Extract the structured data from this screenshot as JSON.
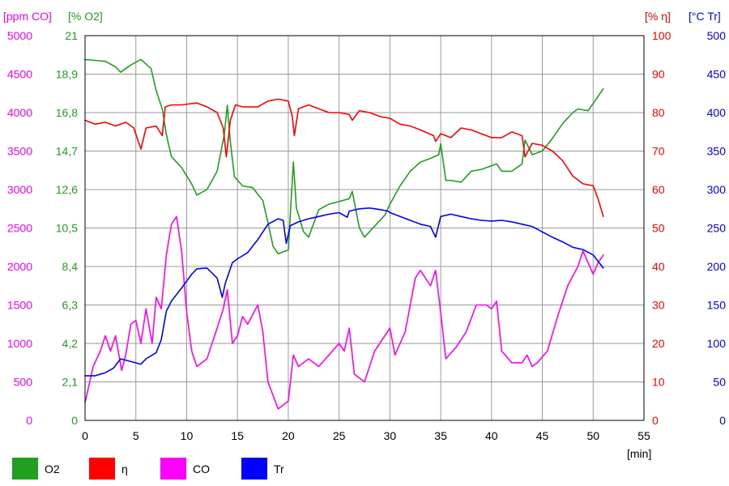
{
  "chart_data": {
    "type": "line",
    "x_unit": "[min]",
    "xlim": [
      0,
      55
    ],
    "x_ticks": [
      0,
      5,
      10,
      15,
      20,
      25,
      30,
      35,
      40,
      45,
      50,
      55
    ],
    "grid": true,
    "legend_position": "bottom-left",
    "axes": {
      "co": {
        "unit": "[ppm CO]",
        "color": "#ff00ff",
        "ticks": [
          "0",
          "500",
          "1000",
          "1500",
          "2000",
          "2500",
          "3000",
          "3500",
          "4000",
          "4500",
          "5000"
        ],
        "ylim": [
          0,
          5000
        ],
        "side": "left"
      },
      "o2": {
        "unit": "[% O2]",
        "color": "#1fa01f",
        "ticks": [
          "0",
          "2,1",
          "4,2",
          "6,3",
          "8,4",
          "10,5",
          "12,6",
          "14,7",
          "16,8",
          "18,9",
          "21"
        ],
        "ylim": [
          0,
          21
        ],
        "side": "left"
      },
      "eta": {
        "unit": "[% η]",
        "color": "#ff0000",
        "ticks": [
          "0",
          "10",
          "20",
          "30",
          "40",
          "50",
          "60",
          "70",
          "80",
          "90",
          "100"
        ],
        "ylim": [
          0,
          100
        ],
        "side": "right"
      },
      "tr": {
        "unit": "[°C Tr]",
        "color": "#0000ff",
        "ticks": [
          "0",
          "50",
          "100",
          "150",
          "200",
          "250",
          "300",
          "350",
          "400",
          "450",
          "500"
        ],
        "ylim": [
          0,
          500
        ],
        "side": "right"
      }
    },
    "legend": [
      {
        "label": "O2",
        "color": "#1fa01f"
      },
      {
        "label": "η",
        "color": "#ff0000"
      },
      {
        "label": "CO",
        "color": "#ff00ff"
      },
      {
        "label": "Tr",
        "color": "#0000ff"
      }
    ],
    "series": [
      {
        "name": "O2",
        "axis": "o2",
        "color": "#1fa01f",
        "points": [
          [
            0,
            19.7
          ],
          [
            2,
            19.6
          ],
          [
            3,
            19.3
          ],
          [
            3.5,
            19.0
          ],
          [
            4.5,
            19.4
          ],
          [
            5.5,
            19.7
          ],
          [
            6.5,
            19.2
          ],
          [
            7,
            18.0
          ],
          [
            7.6,
            17.0
          ],
          [
            8,
            15.6
          ],
          [
            8.5,
            14.4
          ],
          [
            9.5,
            13.8
          ],
          [
            10.5,
            12.9
          ],
          [
            11,
            12.3
          ],
          [
            12,
            12.6
          ],
          [
            13,
            13.6
          ],
          [
            13.7,
            15.6
          ],
          [
            14,
            17.2
          ],
          [
            14.3,
            15.2
          ],
          [
            14.7,
            13.3
          ],
          [
            15.5,
            12.8
          ],
          [
            16.5,
            12.7
          ],
          [
            17.5,
            12.0
          ],
          [
            18,
            10.8
          ],
          [
            18.5,
            9.5
          ],
          [
            19,
            9.1
          ],
          [
            20,
            9.3
          ],
          [
            20.5,
            14.1
          ],
          [
            20.8,
            11.6
          ],
          [
            21.5,
            10.3
          ],
          [
            22,
            10.0
          ],
          [
            23,
            11.5
          ],
          [
            24,
            11.8
          ],
          [
            26,
            12.1
          ],
          [
            26.3,
            12.5
          ],
          [
            27,
            10.5
          ],
          [
            27.5,
            10.0
          ],
          [
            28.5,
            10.6
          ],
          [
            29.5,
            11.2
          ],
          [
            30,
            11.8
          ],
          [
            31,
            12.8
          ],
          [
            32,
            13.6
          ],
          [
            33,
            14.1
          ],
          [
            34,
            14.3
          ],
          [
            34.8,
            14.5
          ],
          [
            35,
            15.1
          ],
          [
            35.5,
            13.1
          ],
          [
            36,
            13.1
          ],
          [
            37,
            13.0
          ],
          [
            37.5,
            13.3
          ],
          [
            38,
            13.6
          ],
          [
            39,
            13.7
          ],
          [
            40,
            13.9
          ],
          [
            40.5,
            14.0
          ],
          [
            41,
            13.6
          ],
          [
            42,
            13.6
          ],
          [
            43,
            14.0
          ],
          [
            43.3,
            15.3
          ],
          [
            44,
            14.5
          ],
          [
            45,
            14.7
          ],
          [
            46,
            15.4
          ],
          [
            47,
            16.2
          ],
          [
            48,
            16.8
          ],
          [
            48.5,
            17.0
          ],
          [
            49.5,
            16.9
          ],
          [
            50,
            17.3
          ],
          [
            51,
            18.1
          ]
        ]
      },
      {
        "name": "η",
        "axis": "eta",
        "color": "#ff0000",
        "points": [
          [
            0,
            78
          ],
          [
            1,
            77
          ],
          [
            2,
            77.5
          ],
          [
            3,
            76.5
          ],
          [
            4,
            77.5
          ],
          [
            4.8,
            76
          ],
          [
            5.5,
            70.5
          ],
          [
            6,
            76
          ],
          [
            7,
            76.5
          ],
          [
            7.6,
            74
          ],
          [
            7.9,
            81.5
          ],
          [
            8.5,
            82
          ],
          [
            9.5,
            82
          ],
          [
            11,
            82.5
          ],
          [
            12,
            81.5
          ],
          [
            13,
            80
          ],
          [
            13.6,
            76
          ],
          [
            13.9,
            68.5
          ],
          [
            14.3,
            78
          ],
          [
            14.8,
            82
          ],
          [
            15.5,
            81.5
          ],
          [
            17,
            81.5
          ],
          [
            18,
            83
          ],
          [
            19,
            83.5
          ],
          [
            20,
            83
          ],
          [
            20.4,
            79
          ],
          [
            20.6,
            74
          ],
          [
            21,
            81
          ],
          [
            22,
            82
          ],
          [
            23,
            81
          ],
          [
            24,
            80
          ],
          [
            25,
            80
          ],
          [
            26,
            79.5
          ],
          [
            26.3,
            78
          ],
          [
            27,
            80.5
          ],
          [
            28,
            80
          ],
          [
            29,
            79
          ],
          [
            30,
            78.5
          ],
          [
            31,
            77
          ],
          [
            32,
            76.5
          ],
          [
            33,
            75.5
          ],
          [
            34.3,
            74
          ],
          [
            34.5,
            72.5
          ],
          [
            35,
            74.5
          ],
          [
            36,
            73.5
          ],
          [
            37,
            76
          ],
          [
            38,
            75.5
          ],
          [
            39,
            74.5
          ],
          [
            40,
            73.5
          ],
          [
            41,
            73.5
          ],
          [
            42,
            75
          ],
          [
            43,
            74
          ],
          [
            43.3,
            68.5
          ],
          [
            44,
            72
          ],
          [
            45,
            71.5
          ],
          [
            46,
            70
          ],
          [
            47,
            67.5
          ],
          [
            48,
            63.5
          ],
          [
            49,
            61.5
          ],
          [
            50,
            61
          ],
          [
            50.5,
            57.5
          ],
          [
            51,
            53
          ]
        ]
      },
      {
        "name": "CO",
        "axis": "co",
        "color": "#ff00ff",
        "points": [
          [
            0,
            230
          ],
          [
            0.8,
            700
          ],
          [
            1.5,
            900
          ],
          [
            2,
            1100
          ],
          [
            2.5,
            900
          ],
          [
            3,
            1100
          ],
          [
            3.6,
            650
          ],
          [
            4,
            850
          ],
          [
            4.5,
            1250
          ],
          [
            5,
            1300
          ],
          [
            5.5,
            1000
          ],
          [
            6,
            1450
          ],
          [
            6.6,
            1000
          ],
          [
            7,
            1600
          ],
          [
            7.5,
            1450
          ],
          [
            8,
            2150
          ],
          [
            8.5,
            2550
          ],
          [
            9,
            2650
          ],
          [
            9.5,
            2200
          ],
          [
            10,
            1400
          ],
          [
            10.5,
            900
          ],
          [
            11,
            700
          ],
          [
            12,
            800
          ],
          [
            13,
            1200
          ],
          [
            13.6,
            1450
          ],
          [
            14,
            1700
          ],
          [
            14.5,
            1000
          ],
          [
            15,
            1100
          ],
          [
            15.5,
            1350
          ],
          [
            16,
            1250
          ],
          [
            17,
            1500
          ],
          [
            17.5,
            1150
          ],
          [
            18,
            500
          ],
          [
            19,
            150
          ],
          [
            20,
            250
          ],
          [
            20.5,
            850
          ],
          [
            21,
            700
          ],
          [
            22,
            800
          ],
          [
            23,
            700
          ],
          [
            24,
            850
          ],
          [
            25,
            1000
          ],
          [
            25.5,
            900
          ],
          [
            26,
            1200
          ],
          [
            26.5,
            600
          ],
          [
            27.5,
            500
          ],
          [
            28.5,
            900
          ],
          [
            29,
            1000
          ],
          [
            30,
            1200
          ],
          [
            30.5,
            850
          ],
          [
            31.5,
            1150
          ],
          [
            32.5,
            1850
          ],
          [
            33,
            1950
          ],
          [
            34,
            1750
          ],
          [
            34.5,
            1950
          ],
          [
            35,
            1400
          ],
          [
            35.5,
            800
          ],
          [
            36.5,
            950
          ],
          [
            37.5,
            1150
          ],
          [
            38.5,
            1500
          ],
          [
            39.5,
            1500
          ],
          [
            40,
            1450
          ],
          [
            40.5,
            1550
          ],
          [
            41,
            900
          ],
          [
            42,
            750
          ],
          [
            43,
            750
          ],
          [
            43.5,
            850
          ],
          [
            44,
            700
          ],
          [
            44.5,
            750
          ],
          [
            45.5,
            900
          ],
          [
            46.5,
            1350
          ],
          [
            47.5,
            1750
          ],
          [
            48.5,
            2000
          ],
          [
            49,
            2200
          ],
          [
            49.5,
            2050
          ],
          [
            50,
            1900
          ],
          [
            50.5,
            2050
          ],
          [
            51,
            2150
          ]
        ]
      },
      {
        "name": "Tr",
        "axis": "tr",
        "color": "#0000ff",
        "points": [
          [
            0,
            58
          ],
          [
            1,
            58
          ],
          [
            2,
            62
          ],
          [
            2.8,
            68
          ],
          [
            3.5,
            80
          ],
          [
            5.5,
            73
          ],
          [
            6,
            80
          ],
          [
            7,
            88
          ],
          [
            7.5,
            105
          ],
          [
            8,
            142
          ],
          [
            8.5,
            155
          ],
          [
            9.5,
            172
          ],
          [
            10.5,
            190
          ],
          [
            11,
            197
          ],
          [
            12,
            198
          ],
          [
            13,
            185
          ],
          [
            13.5,
            160
          ],
          [
            13.8,
            178
          ],
          [
            14.5,
            205
          ],
          [
            15,
            210
          ],
          [
            16,
            218
          ],
          [
            17,
            235
          ],
          [
            18,
            255
          ],
          [
            19,
            262
          ],
          [
            19.5,
            260
          ],
          [
            19.8,
            230
          ],
          [
            20.2,
            253
          ],
          [
            21,
            258
          ],
          [
            22,
            262
          ],
          [
            23,
            265
          ],
          [
            24,
            268
          ],
          [
            25,
            270
          ],
          [
            25.8,
            264
          ],
          [
            26,
            272
          ],
          [
            27,
            275
          ],
          [
            28,
            276
          ],
          [
            29,
            274
          ],
          [
            29.8,
            272
          ],
          [
            30,
            270
          ],
          [
            32,
            260
          ],
          [
            33,
            255
          ],
          [
            34,
            252
          ],
          [
            34.5,
            238
          ],
          [
            35,
            265
          ],
          [
            36,
            268
          ],
          [
            37,
            265
          ],
          [
            38,
            262
          ],
          [
            39,
            260
          ],
          [
            40,
            259
          ],
          [
            41,
            260
          ],
          [
            42,
            258
          ],
          [
            43,
            255
          ],
          [
            44,
            252
          ],
          [
            45,
            245
          ],
          [
            46,
            238
          ],
          [
            47,
            232
          ],
          [
            48,
            225
          ],
          [
            49,
            222
          ],
          [
            50,
            215
          ],
          [
            51,
            198
          ]
        ]
      }
    ]
  }
}
